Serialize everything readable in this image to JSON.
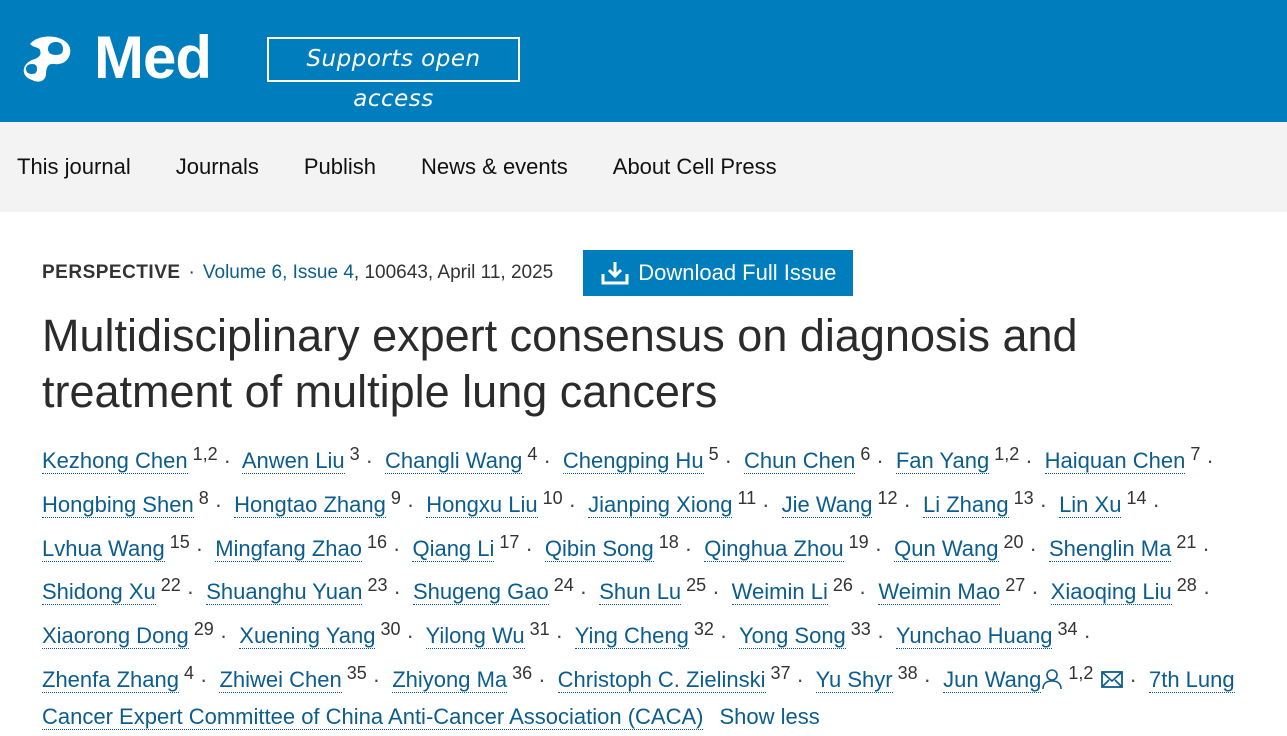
{
  "header": {
    "logo_text": "Med",
    "open_access": "Supports open access",
    "brand_color": "#007dbc"
  },
  "nav": [
    "This journal",
    "Journals",
    "Publish",
    "News & events",
    "About Cell Press"
  ],
  "article": {
    "type": "PERSPECTIVE",
    "volume": "Volume 6, Issue 4",
    "meta": ", 100643, April 11, 2025",
    "download_label": "Download Full Issue",
    "title": "Multidisciplinary expert consensus on diagnosis and treatment of multiple lung cancers",
    "authors": [
      {
        "name": "Kezhong Chen",
        "sup": "1,2"
      },
      {
        "name": "Anwen Liu",
        "sup": "3"
      },
      {
        "name": "Changli Wang",
        "sup": "4"
      },
      {
        "name": "Chengping Hu",
        "sup": "5"
      },
      {
        "name": "Chun Chen",
        "sup": "6"
      },
      {
        "name": "Fan Yang",
        "sup": "1,2"
      },
      {
        "name": "Haiquan Chen",
        "sup": "7"
      },
      {
        "name": "Hongbing Shen",
        "sup": "8"
      },
      {
        "name": "Hongtao Zhang",
        "sup": "9"
      },
      {
        "name": "Hongxu Liu",
        "sup": "10"
      },
      {
        "name": "Jianping Xiong",
        "sup": "11"
      },
      {
        "name": "Jie Wang",
        "sup": "12"
      },
      {
        "name": "Li Zhang",
        "sup": "13"
      },
      {
        "name": "Lin Xu",
        "sup": "14"
      },
      {
        "name": "Lvhua Wang",
        "sup": "15"
      },
      {
        "name": "Mingfang Zhao",
        "sup": "16"
      },
      {
        "name": "Qiang Li",
        "sup": "17"
      },
      {
        "name": "Qibin Song",
        "sup": "18"
      },
      {
        "name": "Qinghua Zhou",
        "sup": "19"
      },
      {
        "name": "Qun Wang",
        "sup": "20"
      },
      {
        "name": "Shenglin Ma",
        "sup": "21"
      },
      {
        "name": "Shidong Xu",
        "sup": "22"
      },
      {
        "name": "Shuanghu Yuan",
        "sup": "23"
      },
      {
        "name": "Shugeng Gao",
        "sup": "24"
      },
      {
        "name": "Shun Lu",
        "sup": "25"
      },
      {
        "name": "Weimin Li",
        "sup": "26"
      },
      {
        "name": "Weimin Mao",
        "sup": "27"
      },
      {
        "name": "Xiaoqing Liu",
        "sup": "28"
      },
      {
        "name": "Xiaorong Dong",
        "sup": "29"
      },
      {
        "name": "Xuening Yang",
        "sup": "30"
      },
      {
        "name": "Yilong Wu",
        "sup": "31"
      },
      {
        "name": "Ying Cheng",
        "sup": "32"
      },
      {
        "name": "Yong Song",
        "sup": "33"
      },
      {
        "name": "Yunchao Huang",
        "sup": "34"
      },
      {
        "name": "Zhenfa Zhang",
        "sup": "4"
      },
      {
        "name": "Zhiwei Chen",
        "sup": "35"
      },
      {
        "name": "Zhiyong Ma",
        "sup": "36"
      },
      {
        "name": "Christoph C. Zielinski",
        "sup": "37"
      },
      {
        "name": "Yu Shyr",
        "sup": "38"
      },
      {
        "name": "Jun Wang",
        "sup": "1,2",
        "corresponding": true
      }
    ],
    "group_author": "7th Lung Cancer Expert Committee of China Anti-Cancer Association (CACA)",
    "show_less": "Show less",
    "separator": "·"
  }
}
